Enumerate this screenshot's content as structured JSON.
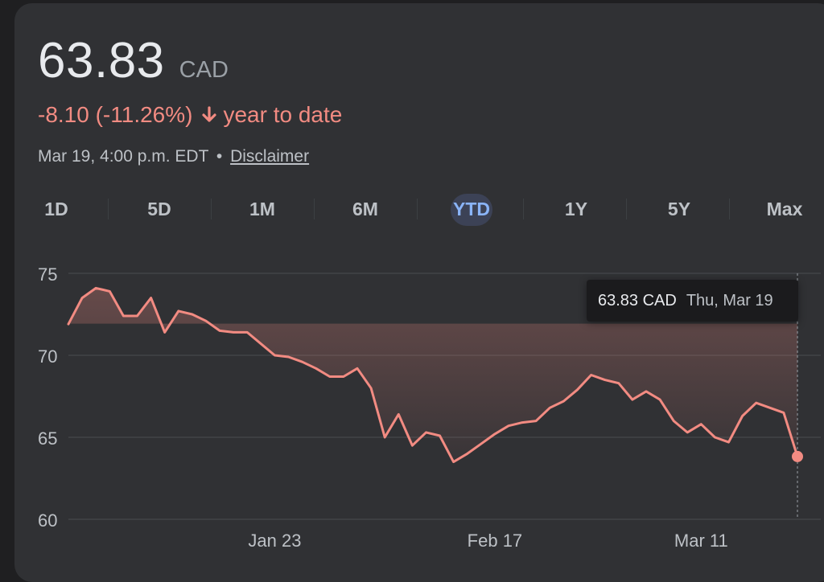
{
  "quote": {
    "price": "63.83",
    "currency": "CAD",
    "change": "-8.10 (-11.26%)",
    "change_period": "year to date",
    "timestamp": "Mar 19, 4:00 p.m. EDT",
    "separator": "•",
    "disclaimer": "Disclaimer"
  },
  "tabs": [
    "1D",
    "5D",
    "1M",
    "6M",
    "YTD",
    "1Y",
    "5Y",
    "Max"
  ],
  "active_tab": "YTD",
  "tooltip": {
    "price": "63.83 CAD",
    "date": "Thu, Mar 19"
  },
  "colors": {
    "line": "#f28b82",
    "positive": "#81c995",
    "negative": "#f28b82",
    "tab_active": "#8ab4f8"
  },
  "chart_data": {
    "type": "area",
    "title": "",
    "xlabel": "",
    "ylabel": "",
    "ylim": [
      60,
      75
    ],
    "yticks": [
      75,
      70,
      65,
      60
    ],
    "xticks": [
      "Jan 23",
      "Feb 17",
      "Mar 11"
    ],
    "xtick_indices": [
      15,
      31,
      46
    ],
    "grid": true,
    "baseline": 71.93,
    "series": [
      {
        "values": [
          71.9,
          73.5,
          74.1,
          73.9,
          72.4,
          72.4,
          73.5,
          71.4,
          72.7,
          72.5,
          72.1,
          71.5,
          71.4,
          71.4,
          70.7,
          70,
          69.9,
          69.6,
          69.2,
          68.7,
          68.7,
          69.2,
          68,
          65,
          66.4,
          64.5,
          65.3,
          65.1,
          63.5,
          64,
          64.6,
          65.2,
          65.7,
          65.9,
          66,
          66.8,
          67.2,
          67.9,
          68.8,
          68.5,
          68.3,
          67.3,
          67.8,
          67.3,
          66,
          65.3,
          65.8,
          65,
          64.7,
          66.3,
          67.1,
          66.8,
          66.5,
          63.83
        ]
      }
    ]
  }
}
